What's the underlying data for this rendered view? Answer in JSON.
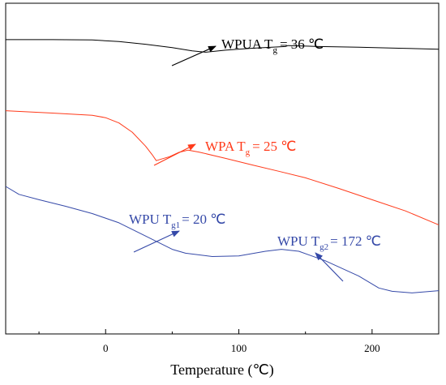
{
  "chart_data": {
    "type": "line",
    "xlabel": "Temperature (℃)",
    "ylabel": "",
    "xlim": [
      -75,
      250
    ],
    "ylim": [
      0,
      100
    ],
    "x_ticks": [
      0,
      100,
      200
    ],
    "x_tick_labels": [
      "0",
      "100",
      "200"
    ],
    "grid": false,
    "legend": "none",
    "series": [
      {
        "color": "#000000",
        "x": [
          -75,
          -40,
          -10,
          10,
          30,
          50,
          65,
          75,
          90,
          110,
          135,
          137,
          160,
          190,
          220,
          250
        ],
        "values": [
          89,
          89,
          88.9,
          88.4,
          87.6,
          86.6,
          85.6,
          85.2,
          85.8,
          86.4,
          86.9,
          87.2,
          86.9,
          86.7,
          86.4,
          86.1
        ]
      },
      {
        "color": "#ff3a1a",
        "x": [
          -75,
          -40,
          -10,
          0,
          10,
          20,
          30,
          35,
          38,
          42,
          48,
          55,
          62,
          70,
          90,
          110,
          130,
          150,
          175,
          200,
          225,
          250
        ],
        "values": [
          67.5,
          66.8,
          66.1,
          65.4,
          63.8,
          61.0,
          56.8,
          54.2,
          52.4,
          52.9,
          53.6,
          54.9,
          55.6,
          55.0,
          53.1,
          51.1,
          49.2,
          47.2,
          44.0,
          40.6,
          37.2,
          33.0
        ]
      },
      {
        "color": "#3549a8",
        "x": [
          -75,
          -65,
          -50,
          -30,
          -10,
          10,
          30,
          50,
          60,
          80,
          100,
          120,
          132,
          145,
          165,
          190,
          205,
          215,
          230,
          250
        ],
        "values": [
          44.6,
          42.2,
          40.6,
          38.6,
          36.4,
          33.6,
          29.6,
          25.6,
          24.4,
          23.4,
          23.6,
          25.0,
          25.6,
          25.0,
          22.1,
          17.5,
          13.9,
          12.9,
          12.4,
          13.1
        ]
      }
    ],
    "annotations": [
      {
        "text": "WPUA T",
        "sub": "g",
        "rest": "= 36 ℃",
        "color": "#000000"
      },
      {
        "text": "WPA T",
        "sub": "g",
        "rest": "= 25 ℃",
        "color": "#ff3a1a"
      },
      {
        "text": "WPU T",
        "sub": "g1",
        "rest": "= 20 ℃",
        "color": "#3549a8"
      },
      {
        "text": "WPU T",
        "sub": "g2",
        "rest": "= 172 ℃",
        "color": "#3549a8"
      }
    ]
  }
}
